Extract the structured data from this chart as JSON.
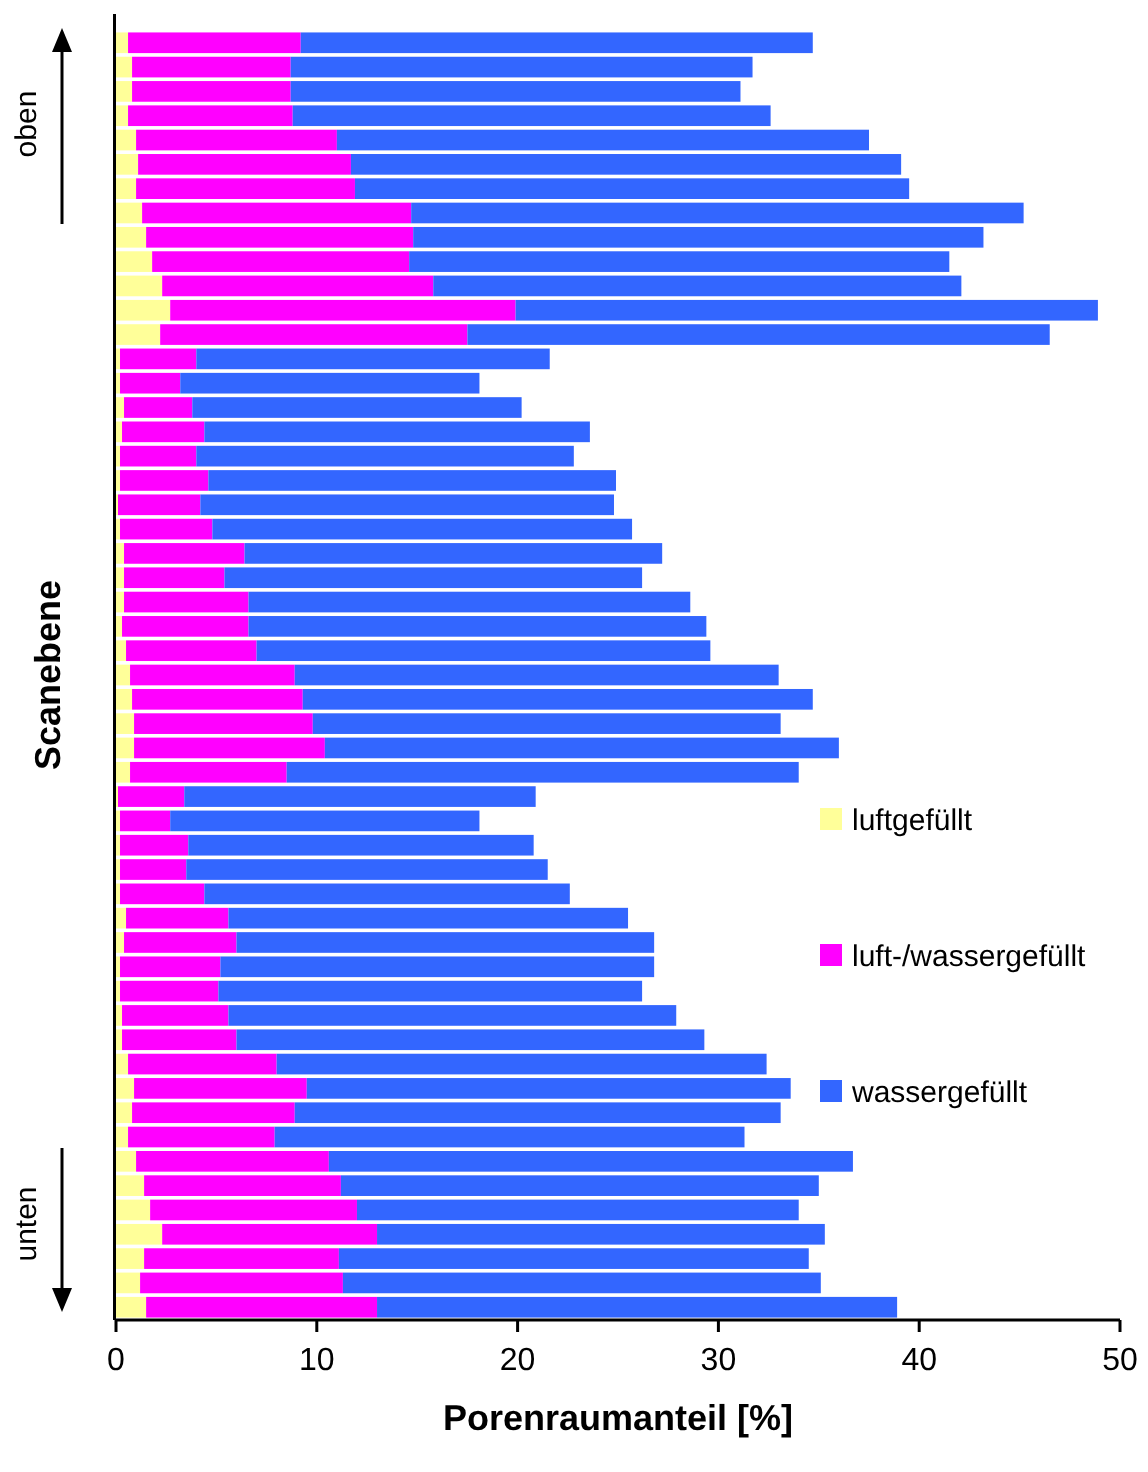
{
  "chart_data": {
    "type": "bar",
    "orientation": "horizontal",
    "stacked": true,
    "xlabel": "Porenraumanteil [%]",
    "ylabel": "Scanebene",
    "categories": [
      null,
      null,
      null,
      null,
      null,
      null,
      null,
      null,
      null,
      null,
      null,
      null,
      null,
      null,
      null,
      null,
      null,
      null,
      null,
      null,
      null,
      null,
      null,
      null,
      null,
      null,
      null,
      null,
      null,
      null,
      null,
      null,
      null,
      null,
      null,
      null,
      null,
      null,
      null,
      null,
      null,
      null,
      null,
      null,
      null,
      null,
      null,
      null,
      null,
      null,
      null,
      null,
      null
    ],
    "series": [
      {
        "name": "luftgefüllt",
        "color": "#ffff99",
        "values": [
          0.6,
          0.8,
          0.8,
          0.6,
          1.0,
          1.1,
          1.0,
          1.3,
          1.5,
          1.8,
          2.3,
          2.7,
          2.2,
          0.2,
          0.2,
          0.4,
          0.3,
          0.2,
          0.2,
          0.1,
          0.2,
          0.4,
          0.4,
          0.4,
          0.3,
          0.5,
          0.7,
          0.8,
          0.9,
          0.9,
          0.7,
          0.1,
          0.2,
          0.2,
          0.2,
          0.2,
          0.5,
          0.4,
          0.2,
          0.2,
          0.3,
          0.3,
          0.6,
          0.9,
          0.8,
          0.6,
          1.0,
          1.4,
          1.7,
          2.3,
          1.4,
          1.2,
          1.5
        ]
      },
      {
        "name": "luft-/wassergefüllt",
        "color": "#ff00ff",
        "values": [
          8.6,
          7.9,
          7.9,
          8.2,
          10.0,
          10.6,
          10.9,
          13.4,
          13.3,
          12.8,
          13.5,
          17.2,
          15.3,
          3.8,
          3.0,
          3.4,
          4.1,
          3.8,
          4.4,
          4.1,
          4.6,
          6.0,
          5.0,
          6.2,
          6.3,
          6.5,
          8.2,
          8.5,
          8.9,
          9.5,
          7.8,
          3.3,
          2.5,
          3.4,
          3.3,
          4.2,
          5.1,
          5.6,
          5.0,
          4.9,
          5.3,
          5.7,
          7.4,
          8.6,
          8.1,
          7.3,
          9.6,
          9.8,
          10.3,
          10.7,
          9.7,
          10.1,
          11.5
        ]
      },
      {
        "name": "wassergefüllt",
        "color": "#3366ff",
        "values": [
          25.5,
          23.0,
          22.4,
          23.8,
          26.5,
          27.4,
          27.6,
          30.5,
          28.4,
          26.9,
          26.3,
          29.0,
          29.0,
          17.6,
          14.9,
          16.4,
          19.2,
          18.8,
          20.3,
          20.6,
          20.9,
          20.8,
          20.8,
          22.0,
          22.8,
          22.6,
          24.1,
          25.4,
          23.3,
          25.6,
          25.5,
          17.5,
          15.4,
          17.2,
          18.0,
          18.2,
          19.9,
          20.8,
          21.6,
          21.1,
          22.3,
          23.3,
          24.4,
          24.1,
          24.2,
          23.4,
          26.1,
          23.8,
          22.0,
          22.3,
          23.4,
          23.8,
          25.9
        ]
      }
    ],
    "xlim": [
      0,
      50
    ],
    "xticks": [
      0,
      10,
      20,
      30,
      40,
      50
    ],
    "legend": "right",
    "grid": false,
    "annotations": [
      "oben",
      "unten"
    ]
  }
}
